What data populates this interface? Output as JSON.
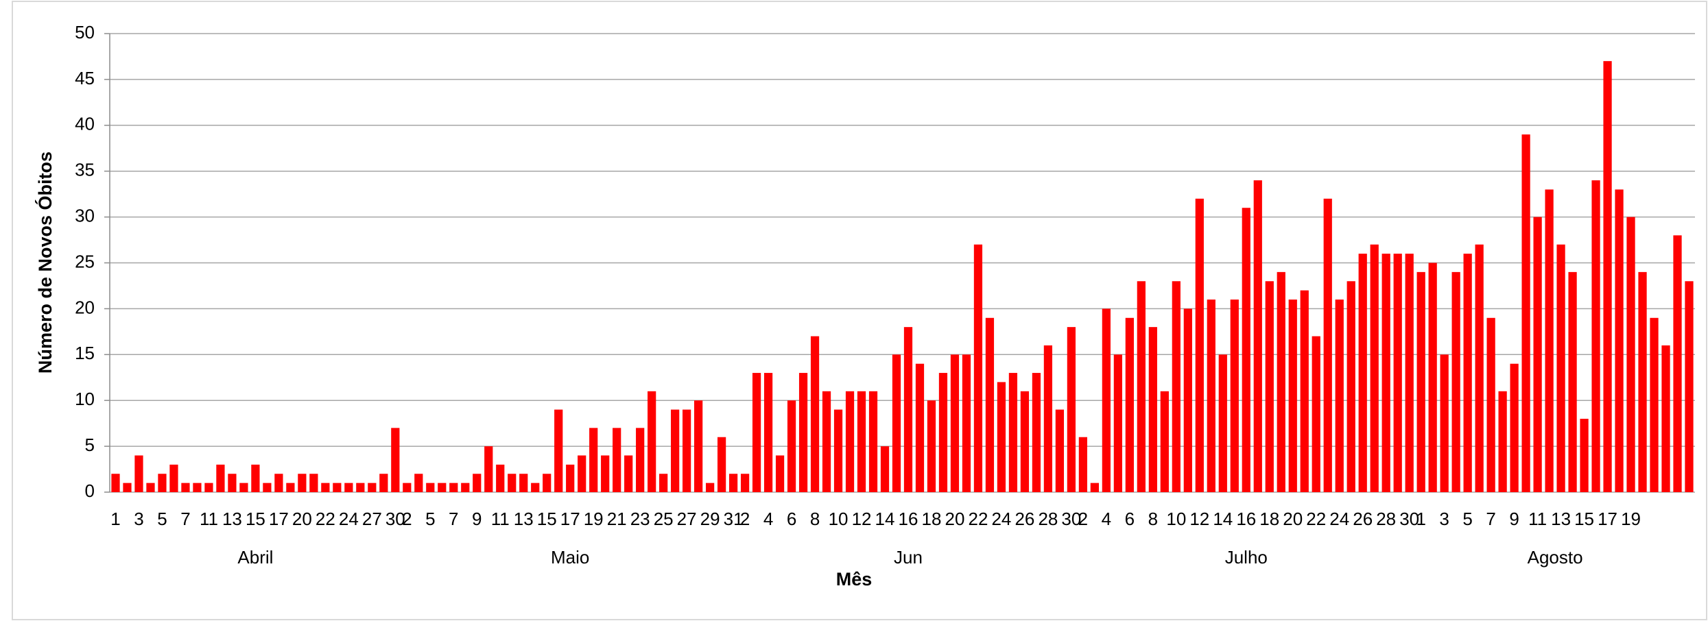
{
  "chart_data": {
    "type": "bar",
    "x_label": "Mês",
    "y_label": "Número de Novos Óbitos",
    "months": [
      "Abril",
      "Maio",
      "Jun",
      "Julho",
      "Agosto"
    ],
    "categories": [
      "1",
      null,
      "3",
      null,
      "5",
      null,
      "7",
      null,
      "11",
      null,
      "13",
      null,
      "15",
      null,
      "17",
      null,
      "20",
      null,
      "22",
      null,
      "24",
      null,
      "27",
      null,
      "30",
      "2",
      null,
      "5",
      null,
      "7",
      null,
      "9",
      null,
      "11",
      null,
      "13",
      null,
      "15",
      null,
      "17",
      null,
      "19",
      null,
      "21",
      null,
      "23",
      null,
      "25",
      null,
      "27",
      null,
      "29",
      null,
      "31",
      "2",
      null,
      "4",
      null,
      "6",
      null,
      "8",
      null,
      "10",
      null,
      "12",
      null,
      "14",
      null,
      "16",
      null,
      "18",
      null,
      "20",
      null,
      "22",
      null,
      "24",
      null,
      "26",
      null,
      "28",
      null,
      "30",
      "2",
      null,
      "4",
      null,
      "6",
      null,
      "8",
      null,
      "10",
      null,
      "12",
      null,
      "14",
      null,
      "16",
      null,
      "18",
      null,
      "20",
      null,
      "22",
      null,
      "24",
      null,
      "26",
      null,
      "28",
      null,
      "30",
      "1",
      null,
      "3",
      null,
      "5",
      null,
      "7",
      null,
      "9",
      null,
      "11",
      null,
      "13",
      null,
      "15",
      null,
      "17",
      null,
      "19",
      null,
      null,
      null,
      null,
      null
    ],
    "values": [
      2,
      1,
      4,
      1,
      2,
      3,
      1,
      1,
      1,
      3,
      2,
      1,
      3,
      1,
      2,
      1,
      2,
      2,
      1,
      1,
      1,
      1,
      1,
      2,
      7,
      1,
      2,
      1,
      1,
      1,
      1,
      2,
      5,
      3,
      2,
      2,
      1,
      2,
      9,
      3,
      4,
      7,
      4,
      7,
      4,
      7,
      11,
      2,
      9,
      9,
      10,
      1,
      6,
      2,
      2,
      13,
      13,
      4,
      10,
      13,
      17,
      11,
      9,
      11,
      11,
      11,
      5,
      15,
      18,
      14,
      10,
      13,
      15,
      15,
      27,
      19,
      12,
      13,
      11,
      13,
      16,
      9,
      18,
      6,
      1,
      20,
      15,
      19,
      23,
      18,
      11,
      23,
      20,
      32,
      21,
      15,
      21,
      31,
      34,
      23,
      24,
      21,
      22,
      17,
      32,
      21,
      23,
      26,
      27,
      26,
      26,
      26,
      24,
      25,
      15,
      24,
      26,
      27,
      19,
      11,
      14,
      39,
      30,
      33,
      27,
      24,
      8,
      34,
      47,
      33,
      30,
      24,
      19,
      16,
      28,
      23
    ],
    "color": "#ff0000",
    "ylim": [
      0,
      50
    ],
    "yticks": [
      0,
      5,
      10,
      15,
      20,
      25,
      30,
      35,
      40,
      45,
      50
    ],
    "grid": true
  }
}
